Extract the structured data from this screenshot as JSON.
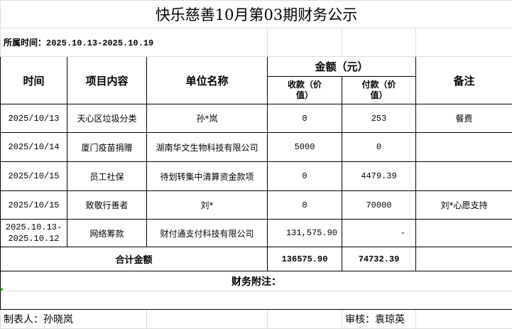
{
  "title": "快乐慈善10月第03期财务公示",
  "period": {
    "label": "所属时间：",
    "value": "2025.10.13-2025.10.19"
  },
  "headers": {
    "time": "时间",
    "item": "项目内容",
    "unit": "单位名称",
    "amount": "金额（元）",
    "income": "收款（价值）",
    "expense": "付款（价值）",
    "remark": "备注"
  },
  "rows": [
    {
      "time": "2025/10/13",
      "item": "天心区垃圾分类",
      "unit": "孙*岚",
      "income": "0",
      "expense": "253",
      "remark": "餐费"
    },
    {
      "time": "2025/10/14",
      "item": "厦门疫苗捐赠",
      "unit": "湖南华文生物科技有限公司",
      "income": "5000",
      "expense": "0",
      "remark": ""
    },
    {
      "time": "2025/10/15",
      "item": "员工社保",
      "unit": "待划转集中清算资金款项",
      "income": "0",
      "expense": "4479.39",
      "remark": ""
    },
    {
      "time": "2025/10/15",
      "item": "致敬行善者",
      "unit": "刘*",
      "income": "0",
      "expense": "70000",
      "remark": "刘*心愿支持"
    },
    {
      "time": "2025.10.13-2025.10.12",
      "time_line1": "2025.10.13-",
      "time_line2": "2025.10.12",
      "item": "网络筹款",
      "unit": "财付通支付科技有限公司",
      "income": "131,575.90",
      "expense": "-",
      "remark": ""
    }
  ],
  "total": {
    "label": "合计金额",
    "income": "136575.90",
    "expense": "74732.39"
  },
  "notes": {
    "label": "财务附注：",
    "content": ""
  },
  "footer": {
    "preparer": "制表人：孙晓岚",
    "auditor": "审核：袁琼英"
  }
}
